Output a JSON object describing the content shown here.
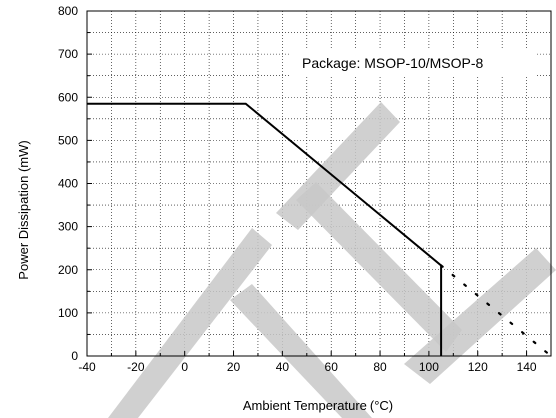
{
  "chart_data": {
    "type": "line",
    "xlabel": "Ambient Temperature",
    "xlabel_unit": "(°C)",
    "ylabel": "Power Dissipation (mW)",
    "annotation": "Package: MSOP-10/MSOP-8",
    "xlim": [
      -40,
      150
    ],
    "ylim": [
      0,
      800
    ],
    "x_ticks": [
      -40,
      -20,
      0,
      20,
      40,
      60,
      80,
      100,
      120,
      140
    ],
    "y_ticks": [
      0,
      100,
      200,
      300,
      400,
      500,
      600,
      700,
      800
    ],
    "x_minor_step": 10,
    "y_minor_step": 50,
    "grid": true,
    "series": [
      {
        "style": "solid",
        "color": "#000000",
        "points": [
          [
            -40,
            585
          ],
          [
            25,
            585
          ],
          [
            105,
            210
          ],
          [
            105,
            0
          ]
        ]
      },
      {
        "style": "dotted",
        "color": "#000000",
        "points": [
          [
            105,
            210
          ],
          [
            150,
            0
          ]
        ]
      }
    ],
    "watermark_color": "#c8c8c8"
  }
}
